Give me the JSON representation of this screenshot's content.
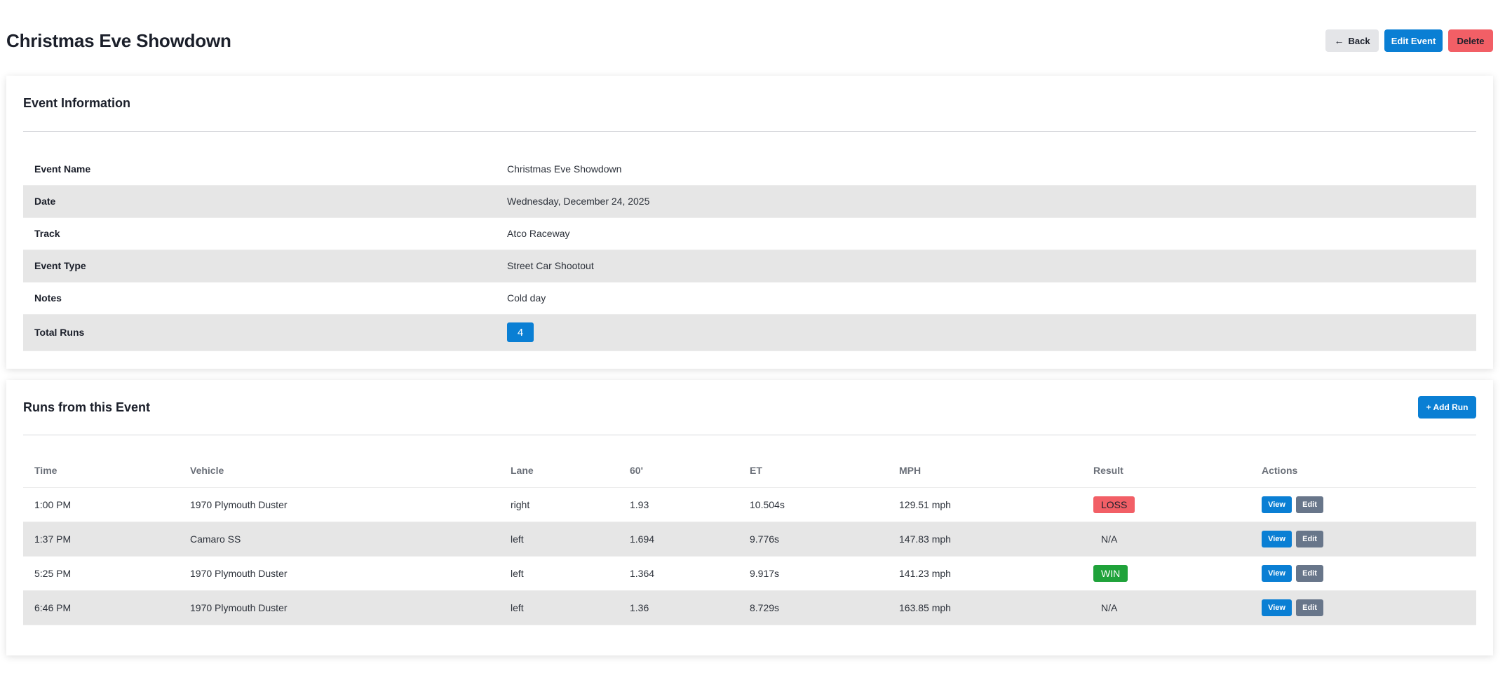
{
  "header": {
    "title": "Christmas Eve Showdown",
    "back_label": "Back",
    "edit_label": "Edit Event",
    "delete_label": "Delete"
  },
  "info": {
    "title": "Event Information",
    "rows": [
      {
        "label": "Event Name",
        "value": "Christmas Eve Showdown"
      },
      {
        "label": "Date",
        "value": "Wednesday, December 24, 2025"
      },
      {
        "label": "Track",
        "value": "Atco Raceway"
      },
      {
        "label": "Event Type",
        "value": "Street Car Shootout"
      },
      {
        "label": "Notes",
        "value": "Cold day"
      }
    ],
    "total_runs_label": "Total Runs",
    "total_runs_value": "4"
  },
  "runs": {
    "title": "Runs from this Event",
    "add_label": "+ Add Run",
    "columns": [
      "Time",
      "Vehicle",
      "Lane",
      "60'",
      "ET",
      "MPH",
      "Result",
      "Actions"
    ],
    "view_label": "View",
    "edit_label": "Edit",
    "rows": [
      {
        "time": "1:00 PM",
        "vehicle": "1970 Plymouth Duster",
        "lane": "right",
        "sixty": "1.93",
        "et": "10.504s",
        "mph": "129.51 mph",
        "result": "LOSS"
      },
      {
        "time": "1:37 PM",
        "vehicle": "Camaro SS",
        "lane": "left",
        "sixty": "1.694",
        "et": "9.776s",
        "mph": "147.83 mph",
        "result": "N/A"
      },
      {
        "time": "5:25 PM",
        "vehicle": "1970 Plymouth Duster",
        "lane": "left",
        "sixty": "1.364",
        "et": "9.917s",
        "mph": "141.23 mph",
        "result": "WIN"
      },
      {
        "time": "6:46 PM",
        "vehicle": "1970 Plymouth Duster",
        "lane": "left",
        "sixty": "1.36",
        "et": "8.729s",
        "mph": "163.85 mph",
        "result": "N/A"
      }
    ]
  },
  "colors": {
    "primary": "#0a7fd4",
    "danger": "#f25f66",
    "success": "#1fa23a",
    "secondary": "#68768a"
  },
  "icons": {
    "back": "arrow-left-icon"
  }
}
